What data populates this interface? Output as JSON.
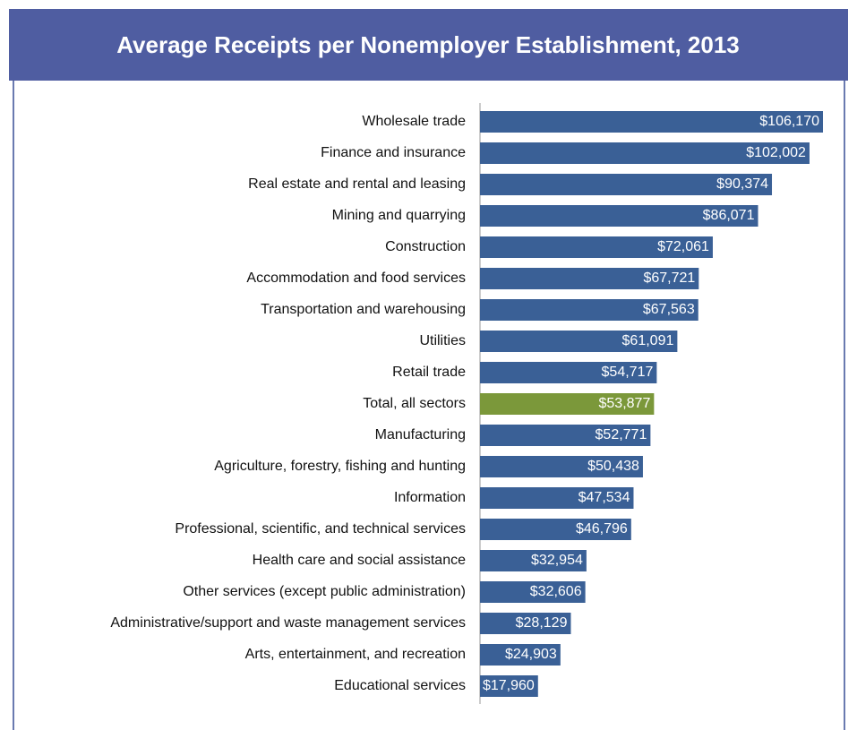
{
  "chart_data": {
    "type": "bar",
    "orientation": "horizontal",
    "title": "Average Receipts per Nonemployer Establishment, 2013",
    "categories": [
      "Wholesale trade",
      "Finance and insurance",
      "Real estate and rental and leasing",
      "Mining and quarrying",
      "Construction",
      "Accommodation and food services",
      "Transportation and warehousing",
      "Utilities",
      "Retail trade",
      "Total, all sectors",
      "Manufacturing",
      "Agriculture, forestry, fishing and hunting",
      "Information",
      "Professional, scientific, and technical services",
      "Health care and social assistance",
      "Other services (except public administration)",
      "Administrative/support and waste management services",
      "Arts, entertainment, and recreation",
      "Educational services"
    ],
    "values": [
      106170,
      102002,
      90374,
      86071,
      72061,
      67721,
      67563,
      61091,
      54717,
      53877,
      52771,
      50438,
      47534,
      46796,
      32954,
      32606,
      28129,
      24903,
      17960
    ],
    "value_labels": [
      "$106,170",
      "$102,002",
      "$90,374",
      "$86,071",
      "$72,061",
      "$67,721",
      "$67,563",
      "$61,091",
      "$54,717",
      "$53,877",
      "$52,771",
      "$50,438",
      "$47,534",
      "$46,796",
      "$32,954",
      "$32,606",
      "$28,129",
      "$24,903",
      "$17,960"
    ],
    "colors": [
      "#3a6096",
      "#3a6096",
      "#3a6096",
      "#3a6096",
      "#3a6096",
      "#3a6096",
      "#3a6096",
      "#3a6096",
      "#3a6096",
      "#7b983a",
      "#3a6096",
      "#3a6096",
      "#3a6096",
      "#3a6096",
      "#3a6096",
      "#3a6096",
      "#3a6096",
      "#3a6096",
      "#3a6096"
    ]
  }
}
